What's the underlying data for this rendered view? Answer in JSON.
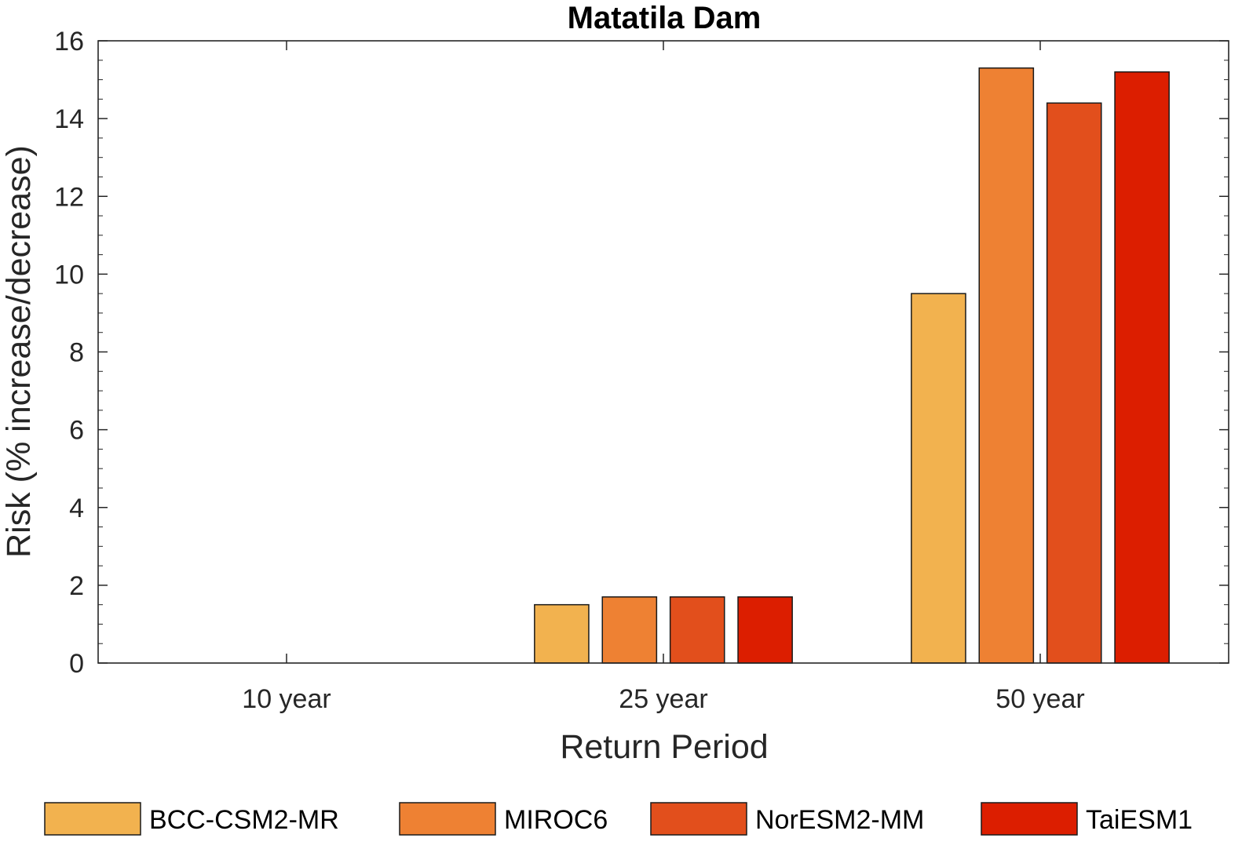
{
  "chart_data": {
    "type": "bar",
    "title": "Matatila Dam",
    "xlabel": "Return Period",
    "ylabel": "Risk (% increase/decrease)",
    "categories": [
      "10 year",
      "25 year",
      "50 year"
    ],
    "ylim": [
      0,
      16
    ],
    "yticks": [
      0,
      2,
      4,
      6,
      8,
      10,
      12,
      14,
      16
    ],
    "series": [
      {
        "name": "BCC-CSM2-MR",
        "color": "#F2B24F",
        "values": [
          0,
          1.5,
          9.5
        ]
      },
      {
        "name": "MIROC6",
        "color": "#EE8133",
        "values": [
          0,
          1.7,
          15.3
        ]
      },
      {
        "name": "NorESM2-MM",
        "color": "#E24F1C",
        "values": [
          0,
          1.7,
          14.4
        ]
      },
      {
        "name": "TaiESM1",
        "color": "#DC1E00",
        "values": [
          0,
          1.7,
          15.2
        ]
      }
    ],
    "grid": false,
    "legend_position": "bottom"
  }
}
